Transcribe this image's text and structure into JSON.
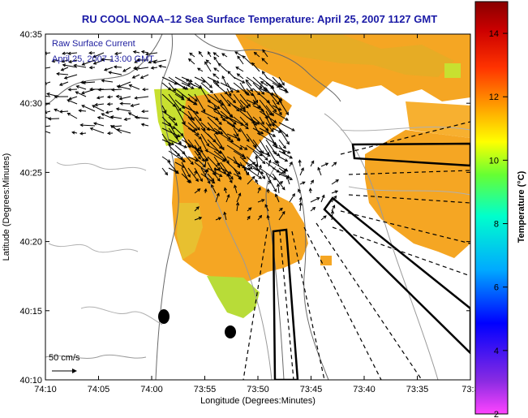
{
  "title": "RU COOL  NOAA–12  Sea Surface Temperature:  April 25, 2007 1127 GMT",
  "overlay_label_1": "Raw Surface Current",
  "overlay_label_2": "April 25, 2007 13:00 GMT",
  "scale_label": "50 cm/s",
  "xlabel": "Longitude (Degrees:Minutes)",
  "ylabel": "Latitude (Degrees:Minutes)",
  "x_ticks": [
    "74:10",
    "74:05",
    "74:00",
    "73:55",
    "73:50",
    "73:45",
    "73:40",
    "73:35",
    "73:3"
  ],
  "y_ticks": [
    "40:35",
    "40:30",
    "40:25",
    "40:20",
    "40:15",
    "40:10"
  ],
  "colorbar": {
    "label": "Temperature (°C)",
    "ticks": [
      "14",
      "12",
      "10",
      "8",
      "6",
      "4",
      "2"
    ],
    "range": [
      2,
      15
    ],
    "colors": [
      "#ff44ff",
      "#8a2be2",
      "#0000ff",
      "#00aaff",
      "#00ffcc",
      "#66ff33",
      "#ffff00",
      "#ffa500",
      "#ff3300",
      "#cc0000",
      "#880000"
    ]
  },
  "map_colors": {
    "water_warm": "#f5a623",
    "water_cool": "#c8e030",
    "land": "#ffffff"
  },
  "chart_data": {
    "type": "heatmap",
    "title": "RU COOL  NOAA–12  Sea Surface Temperature:  April 25, 2007 1127 GMT",
    "xlabel": "Longitude (Degrees:Minutes)",
    "ylabel": "Latitude (Degrees:Minutes)",
    "xlim": [
      "74:10",
      "73:30"
    ],
    "ylim": [
      "40:10",
      "40:35"
    ],
    "value_range_C": [
      2,
      15
    ],
    "observed_sst_C": [
      9,
      13
    ]
  }
}
